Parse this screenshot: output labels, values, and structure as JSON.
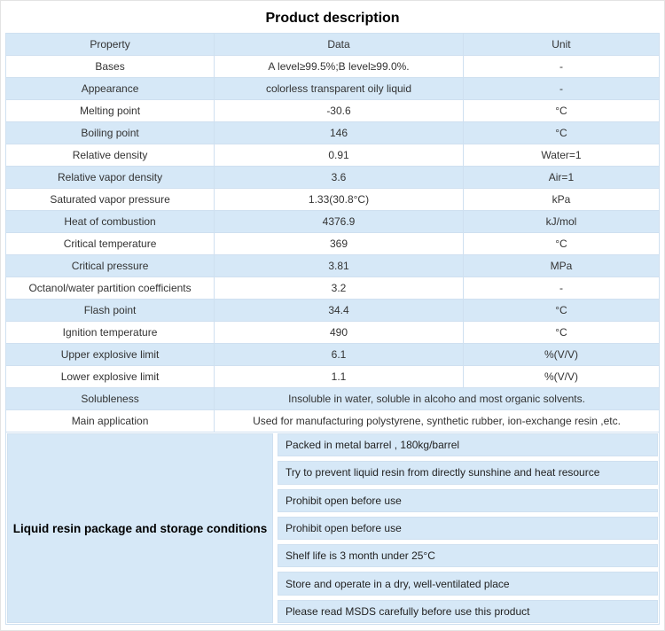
{
  "title": "Product description",
  "colors": {
    "row_highlight": "#d6e8f7",
    "table_border": "#cfe0f0"
  },
  "table": {
    "headers": [
      "Property",
      "Data",
      "Unit"
    ],
    "rows": [
      {
        "property": "Bases",
        "data": "A level≥99.5%;B level≥99.0%.",
        "unit": "-"
      },
      {
        "property": "Appearance",
        "data": "colorless transparent oily liquid",
        "unit": "-"
      },
      {
        "property": "Melting point",
        "data": "-30.6",
        "unit": "°C"
      },
      {
        "property": "Boiling point",
        "data": "146",
        "unit": "°C"
      },
      {
        "property": "Relative density",
        "data": "0.91",
        "unit": "Water=1"
      },
      {
        "property": "Relative vapor density",
        "data": "3.6",
        "unit": "Air=1"
      },
      {
        "property": "Saturated vapor pressure",
        "data": "1.33(30.8°C)",
        "unit": "kPa"
      },
      {
        "property": "Heat of combustion",
        "data": "4376.9",
        "unit": "kJ/mol"
      },
      {
        "property": "Critical temperature",
        "data": "369",
        "unit": "°C"
      },
      {
        "property": "Critical pressure",
        "data": "3.81",
        "unit": "MPa"
      },
      {
        "property": "Octanol/water partition coefficients",
        "data": "3.2",
        "unit": "-"
      },
      {
        "property": "Flash point",
        "data": "34.4",
        "unit": "°C"
      },
      {
        "property": "Ignition temperature",
        "data": "490",
        "unit": "°C"
      },
      {
        "property": "Upper explosive limit",
        "data": "6.1",
        "unit": "%(V/V)"
      },
      {
        "property": "Lower explosive limit",
        "data": "1.1",
        "unit": "%(V/V)"
      },
      {
        "property": "Solubleness",
        "data": "Insoluble in water, soluble in alcoho and most organic solvents.",
        "unit": null,
        "span": true
      },
      {
        "property": "Main application",
        "data": "Used for manufacturing polystyrene, synthetic rubber, ion-exchange resin ,etc.",
        "unit": null,
        "span": true
      }
    ]
  },
  "storage": {
    "title": "Liquid resin package and storage conditions",
    "items": [
      "Packed in metal barrel , 180kg/barrel",
      "Try to prevent liquid resin from directly sunshine and heat resource",
      "Prohibit open before use",
      "Prohibit open before use",
      "Shelf life is 3 month under 25°C",
      "Store and operate in a dry, well-ventilated place",
      "Please read MSDS carefully before use this product"
    ]
  }
}
